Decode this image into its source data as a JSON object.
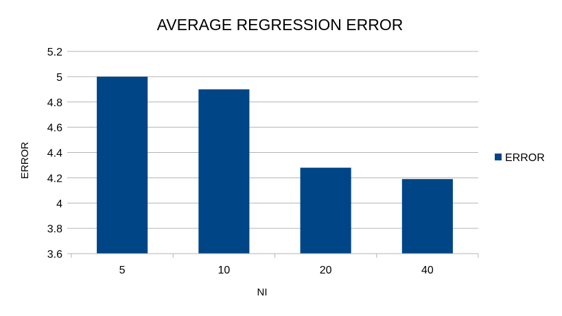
{
  "chart_data": {
    "type": "bar",
    "title": "AVERAGE REGRESSION ERROR",
    "xlabel": "NI",
    "ylabel": "ERROR",
    "categories": [
      "5",
      "10",
      "20",
      "40"
    ],
    "series": [
      {
        "name": "ERROR",
        "values": [
          5.0,
          4.9,
          4.28,
          4.19
        ],
        "color": "#004586"
      }
    ],
    "ylim": [
      3.6,
      5.2
    ],
    "yticks": [
      "3.6",
      "3.8",
      "4",
      "4.2",
      "4.4",
      "4.6",
      "4.8",
      "5",
      "5.2"
    ],
    "grid": true,
    "legend_position": "right"
  }
}
